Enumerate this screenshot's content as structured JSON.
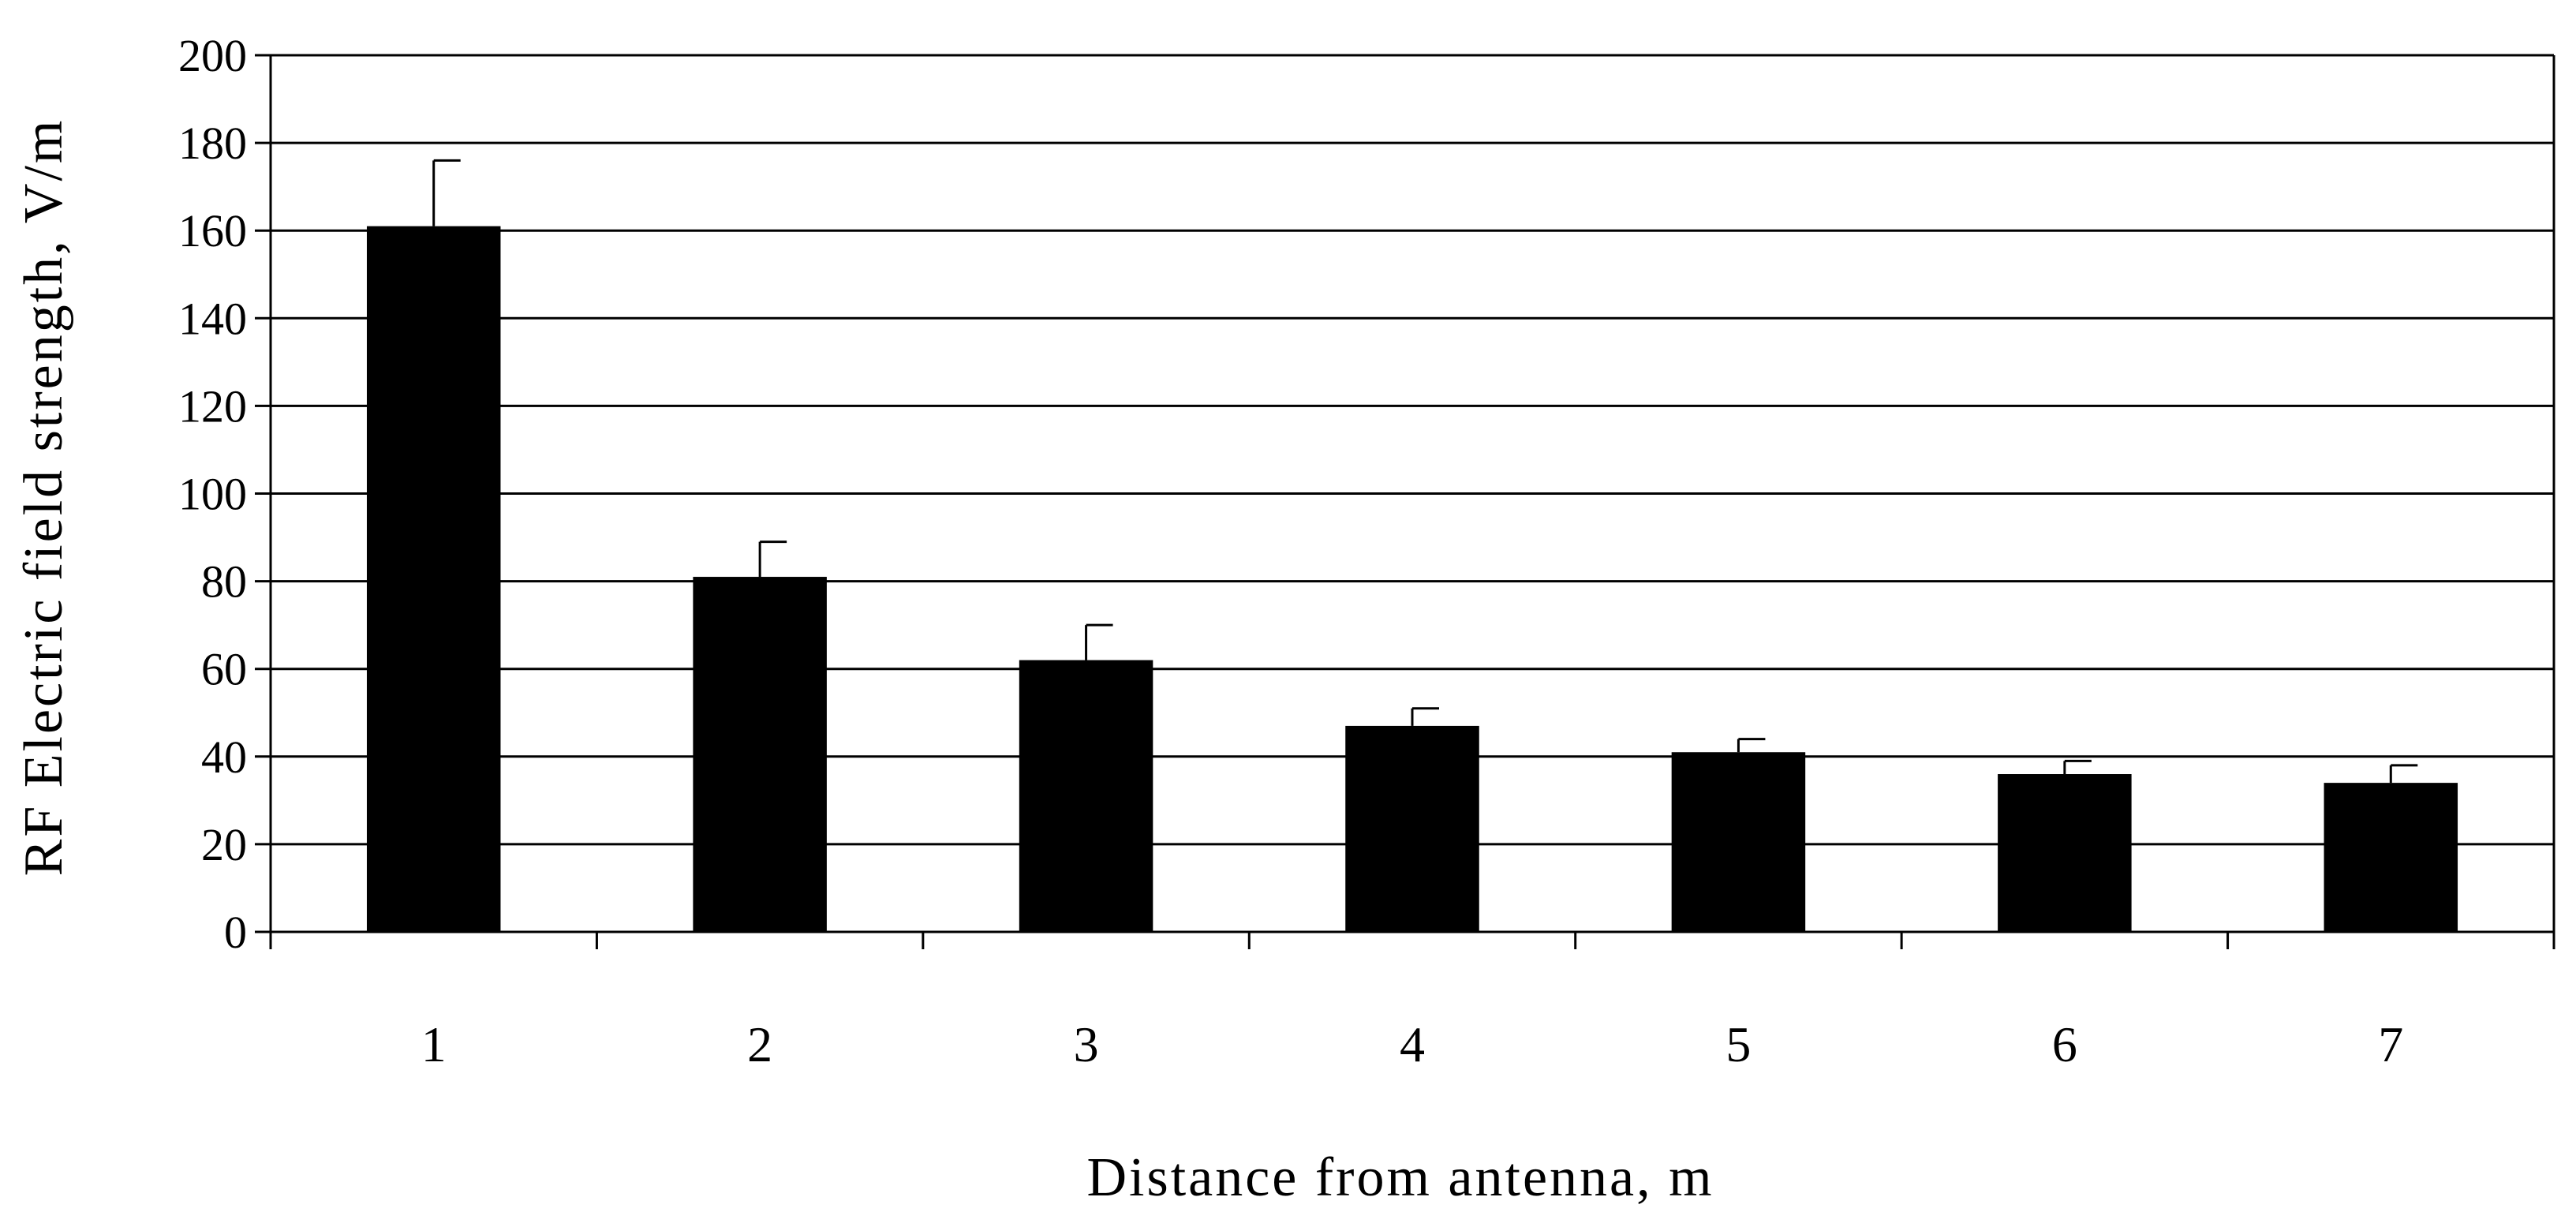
{
  "chart_data": {
    "type": "bar",
    "categories": [
      "1",
      "2",
      "3",
      "4",
      "5",
      "6",
      "7"
    ],
    "series": [
      {
        "values": [
          161,
          81,
          62,
          47,
          41,
          36,
          34
        ],
        "error_upper": [
          176,
          89,
          70,
          51,
          44,
          39,
          38
        ]
      }
    ],
    "xlabel": "Distance from antenna, m",
    "ylabel": "RF Electric field strength, V/m",
    "ylim": [
      0,
      200
    ],
    "yticks": [
      "0",
      "20",
      "40",
      "60",
      "80",
      "100",
      "120",
      "140",
      "160",
      "180",
      "200"
    ],
    "grid": true,
    "legend": "none",
    "colors": {
      "bar": "#000000",
      "grid": "#000000",
      "background": "#ffffff"
    }
  }
}
